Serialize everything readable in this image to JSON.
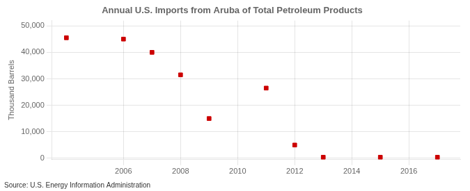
{
  "chart_data": {
    "type": "scatter",
    "title": "Annual U.S. Imports from Aruba of Total Petroleum Products",
    "y_label": "Thousand Barrels",
    "annotations": [
      "Source: U.S. Energy Information Administration"
    ],
    "x": [
      2004,
      2006,
      2007,
      2008,
      2009,
      2011,
      2012,
      2013,
      2015,
      2017
    ],
    "values": [
      45500,
      45000,
      40000,
      31500,
      15000,
      26500,
      5000,
      400,
      400,
      400
    ],
    "color": "#cc0000",
    "marker": "square",
    "xlim": [
      2003.5,
      2017.8
    ],
    "xticks": [
      2006,
      2008,
      2010,
      2012,
      2014,
      2016
    ],
    "ylim": [
      -500,
      52000
    ],
    "yticks": [
      0,
      {
        "value": 10000,
        "label": "10,000"
      },
      {
        "value": 20000,
        "label": "20,000"
      },
      {
        "value": 30000,
        "label": "30,000"
      },
      {
        "value": 40000,
        "label": "40,000"
      },
      {
        "value": 50000,
        "label": "50,000"
      }
    ],
    "grid": true
  }
}
